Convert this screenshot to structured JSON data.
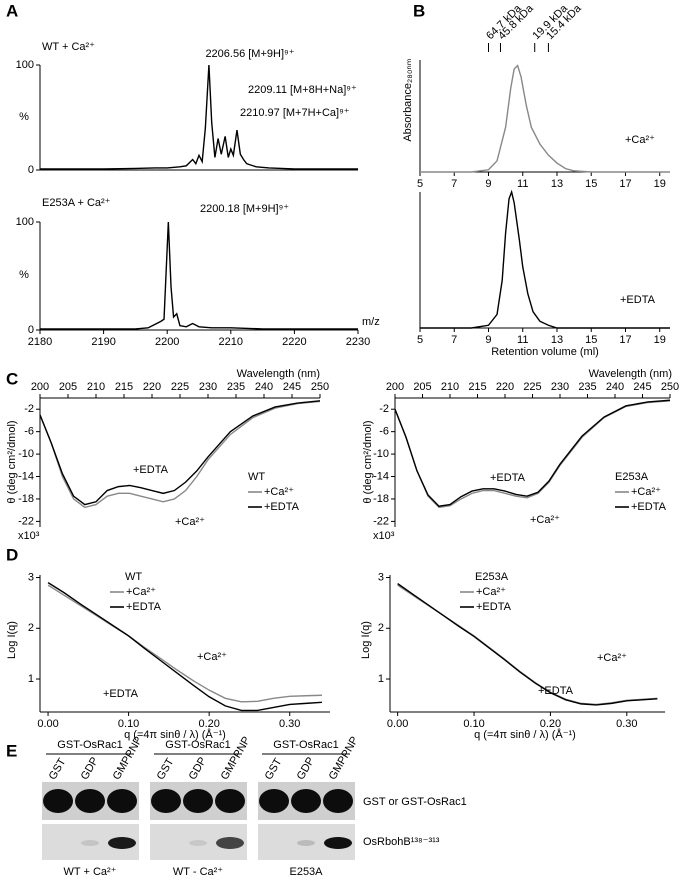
{
  "panel_labels": [
    "A",
    "B",
    "C",
    "D",
    "E"
  ],
  "chart_data": [
    {
      "type": "line",
      "title": "WT + Ca²⁺",
      "ylabel": "%",
      "annotations": [
        "2206.56 [M+9H]⁹⁺",
        "2209.11 [M+8H+Na]⁹⁺",
        "2210.97 [M+7H+Ca]⁹⁺"
      ],
      "xlim": [
        2180,
        2230
      ],
      "ylim": [
        0,
        100
      ],
      "yticks": [
        0,
        100
      ],
      "series": [
        {
          "color": "#000000",
          "x": [
            2180,
            2185,
            2190,
            2195,
            2198,
            2200,
            2202,
            2203,
            2204,
            2204.5,
            2205,
            2205.5,
            2206,
            2206.56,
            2207,
            2207.5,
            2208,
            2208.5,
            2209.11,
            2209.6,
            2210,
            2210.4,
            2210.97,
            2211.5,
            2212,
            2212.5,
            2213,
            2214,
            2216,
            2220,
            2225,
            2230
          ],
          "values": [
            1,
            1,
            1,
            1.5,
            2,
            2,
            3,
            4,
            10,
            6,
            14,
            8,
            40,
            100,
            45,
            12,
            30,
            15,
            32,
            12,
            20,
            14,
            38,
            15,
            10,
            6,
            5,
            3,
            2,
            1,
            1,
            1
          ]
        }
      ]
    },
    {
      "type": "line",
      "title": "E253A + Ca²⁺",
      "ylabel": "%",
      "xlabel": "m/z",
      "annotations": [
        "2200.18 [M+9H]⁹⁺"
      ],
      "xlim": [
        2180,
        2230
      ],
      "xticks": [
        2180,
        2190,
        2200,
        2210,
        2220,
        2230
      ],
      "ylim": [
        0,
        100
      ],
      "yticks": [
        0,
        100
      ],
      "series": [
        {
          "color": "#000000",
          "x": [
            2180,
            2185,
            2190,
            2195,
            2197,
            2198,
            2199,
            2199.5,
            2200.18,
            2200.6,
            2201,
            2201.5,
            2202,
            2203,
            2204,
            2205,
            2207,
            2210,
            2215,
            2220,
            2230
          ],
          "values": [
            1,
            1,
            1,
            1,
            2,
            5,
            8,
            10,
            100,
            40,
            12,
            15,
            4,
            3,
            6,
            3,
            2,
            2,
            1,
            1,
            1
          ]
        }
      ]
    },
    {
      "type": "line",
      "ylabel": "Absorbance₂₈₀ₙₘ",
      "annotations": [
        "+Ca²⁺"
      ],
      "markers": [
        {
          "label": "64.7 kDa",
          "x": 9.0
        },
        {
          "label": "45.8 kDa",
          "x": 9.7
        },
        {
          "label": "19.9 kDa",
          "x": 11.7
        },
        {
          "label": "15.4 kDa",
          "x": 12.5
        }
      ],
      "xlim": [
        5,
        19.6
      ],
      "xticks": [
        5,
        7,
        9,
        11,
        13,
        15,
        17,
        19
      ],
      "ylim": [
        0,
        1
      ],
      "series": [
        {
          "color": "#888888",
          "x": [
            5,
            8,
            9,
            9.5,
            10,
            10.3,
            10.5,
            10.7,
            10.9,
            11.2,
            11.5,
            12,
            12.5,
            13,
            13.5,
            14,
            15,
            19.6
          ],
          "values": [
            0,
            0,
            0.02,
            0.1,
            0.4,
            0.75,
            0.92,
            0.95,
            0.85,
            0.6,
            0.4,
            0.25,
            0.15,
            0.08,
            0.03,
            0.01,
            0,
            0
          ]
        }
      ]
    },
    {
      "type": "line",
      "xlabel": "Retention volume (ml)",
      "annotations": [
        "+EDTA"
      ],
      "xlim": [
        5,
        19.6
      ],
      "xticks": [
        5,
        7,
        9,
        11,
        13,
        15,
        17,
        19
      ],
      "ylim": [
        0,
        1
      ],
      "series": [
        {
          "color": "#000000",
          "x": [
            5,
            8,
            9,
            9.5,
            9.8,
            10,
            10.2,
            10.35,
            10.5,
            10.8,
            11,
            11.3,
            11.6,
            12,
            12.5,
            13,
            19.6
          ],
          "values": [
            0,
            0,
            0.02,
            0.1,
            0.35,
            0.7,
            0.95,
            1,
            0.92,
            0.65,
            0.45,
            0.25,
            0.12,
            0.05,
            0.02,
            0,
            0
          ]
        }
      ]
    },
    {
      "type": "line",
      "xlabel": "Wavelength (nm)",
      "ylabel": "θ (deg cm²/dmol)",
      "y_multiplier": "x10³",
      "legend_title": "WT",
      "annotations": [
        "+EDTA",
        "+Ca²⁺"
      ],
      "xlim": [
        200,
        250
      ],
      "xticks": [
        200,
        205,
        210,
        215,
        220,
        225,
        230,
        235,
        240,
        245,
        250
      ],
      "ylim": [
        -23,
        0
      ],
      "yticks": [
        -2,
        -6,
        -10,
        -14,
        -18,
        -22
      ],
      "series": [
        {
          "name": "+Ca²⁺",
          "color": "#888888",
          "x": [
            200,
            202,
            204,
            206,
            208,
            210,
            212,
            214,
            216,
            218,
            220,
            222,
            224,
            226,
            228,
            230,
            234,
            238,
            242,
            246,
            250
          ],
          "values": [
            -3,
            -8,
            -14,
            -18,
            -19.5,
            -19,
            -17.5,
            -17,
            -17,
            -17.5,
            -18,
            -18.5,
            -18,
            -16.5,
            -14,
            -11,
            -6.5,
            -3.5,
            -1.8,
            -1,
            -0.6
          ]
        },
        {
          "name": "+EDTA",
          "color": "#000000",
          "x": [
            200,
            202,
            204,
            206,
            208,
            210,
            212,
            214,
            216,
            218,
            220,
            222,
            224,
            226,
            228,
            230,
            234,
            238,
            242,
            246,
            250
          ],
          "values": [
            -3,
            -8,
            -13.5,
            -17.5,
            -19,
            -18.5,
            -16.5,
            -15.8,
            -15.6,
            -16,
            -16.5,
            -17,
            -16.5,
            -15,
            -13,
            -10.5,
            -6,
            -3.2,
            -1.6,
            -0.9,
            -0.5
          ]
        }
      ]
    },
    {
      "type": "line",
      "xlabel": "Wavelength (nm)",
      "ylabel": "θ (deg cm²/dmol)",
      "y_multiplier": "x10³",
      "legend_title": "E253A",
      "annotations": [
        "+EDTA",
        "+Ca²⁺"
      ],
      "xlim": [
        200,
        250
      ],
      "xticks": [
        200,
        205,
        210,
        215,
        220,
        225,
        230,
        235,
        240,
        245,
        250
      ],
      "ylim": [
        -23,
        0
      ],
      "yticks": [
        -2,
        -6,
        -10,
        -14,
        -18,
        -22
      ],
      "series": [
        {
          "name": "+Ca²⁺",
          "color": "#888888",
          "x": [
            200,
            202,
            204,
            206,
            208,
            210,
            212,
            214,
            216,
            218,
            220,
            222,
            224,
            226,
            228,
            230,
            234,
            238,
            242,
            246,
            250
          ],
          "values": [
            -2,
            -7,
            -13,
            -17.5,
            -19.5,
            -19.2,
            -18,
            -17,
            -16.5,
            -16.5,
            -17,
            -17.5,
            -17.8,
            -17,
            -15,
            -12,
            -7,
            -3.5,
            -1.5,
            -0.8,
            -0.5
          ]
        },
        {
          "name": "+EDTA",
          "color": "#000000",
          "x": [
            200,
            202,
            204,
            206,
            208,
            210,
            212,
            214,
            216,
            218,
            220,
            222,
            224,
            226,
            228,
            230,
            234,
            238,
            242,
            246,
            250
          ],
          "values": [
            -2,
            -7,
            -13,
            -17.3,
            -19.3,
            -19,
            -17.6,
            -16.6,
            -16.2,
            -16.2,
            -16.6,
            -17.2,
            -17.5,
            -16.8,
            -14.8,
            -11.8,
            -6.8,
            -3.4,
            -1.4,
            -0.7,
            -0.4
          ]
        }
      ]
    },
    {
      "type": "line",
      "xlabel": "q (=4π sinθ / λ)  (Å⁻¹)",
      "ylabel": "Log I(q)",
      "legend_title": "WT",
      "annotations": [
        "+Ca²⁺",
        "+EDTA"
      ],
      "xlim": [
        -0.01,
        0.35
      ],
      "xticks": [
        {
          "value": 0,
          "label": "0.00"
        },
        {
          "value": 0.1,
          "label": "0.10"
        },
        {
          "value": 0.2,
          "label": "0.20"
        },
        {
          "value": 0.3,
          "label": "0.30"
        }
      ],
      "ylim": [
        0.35,
        3.05
      ],
      "yticks": [
        1,
        2,
        3
      ],
      "series": [
        {
          "name": "+Ca²⁺",
          "color": "#888888",
          "x": [
            0,
            0.02,
            0.04,
            0.06,
            0.08,
            0.1,
            0.12,
            0.14,
            0.16,
            0.18,
            0.2,
            0.22,
            0.24,
            0.26,
            0.28,
            0.3,
            0.32,
            0.34
          ],
          "values": [
            2.85,
            2.65,
            2.45,
            2.25,
            2.05,
            1.85,
            1.62,
            1.4,
            1.18,
            0.97,
            0.78,
            0.62,
            0.55,
            0.56,
            0.62,
            0.66,
            0.67,
            0.68
          ]
        },
        {
          "name": "+EDTA",
          "color": "#000000",
          "x": [
            0,
            0.02,
            0.04,
            0.06,
            0.08,
            0.1,
            0.12,
            0.14,
            0.16,
            0.18,
            0.2,
            0.22,
            0.24,
            0.26,
            0.28,
            0.3,
            0.32,
            0.34
          ],
          "values": [
            2.9,
            2.7,
            2.48,
            2.27,
            2.06,
            1.85,
            1.6,
            1.36,
            1.12,
            0.88,
            0.65,
            0.47,
            0.38,
            0.38,
            0.44,
            0.5,
            0.52,
            0.54
          ]
        }
      ]
    },
    {
      "type": "line",
      "xlabel": "q (=4π sinθ / λ)  (Å⁻¹)",
      "ylabel": "Log I(q)",
      "legend_title": "E253A",
      "annotations": [
        "+Ca²⁺",
        "+EDTA"
      ],
      "xlim": [
        -0.01,
        0.35
      ],
      "xticks": [
        {
          "value": 0,
          "label": "0.00"
        },
        {
          "value": 0.1,
          "label": "0.10"
        },
        {
          "value": 0.2,
          "label": "0.20"
        },
        {
          "value": 0.3,
          "label": "0.30"
        }
      ],
      "ylim": [
        0.35,
        3.05
      ],
      "yticks": [
        1,
        2,
        3
      ],
      "series": [
        {
          "name": "+Ca²⁺",
          "color": "#888888",
          "x": [
            0,
            0.02,
            0.04,
            0.06,
            0.08,
            0.1,
            0.12,
            0.14,
            0.16,
            0.18,
            0.2,
            0.22,
            0.24,
            0.26,
            0.28,
            0.3,
            0.32,
            0.34
          ],
          "values": [
            2.85,
            2.65,
            2.45,
            2.25,
            2.05,
            1.85,
            1.62,
            1.39,
            1.15,
            0.93,
            0.74,
            0.6,
            0.52,
            0.5,
            0.53,
            0.58,
            0.6,
            0.62
          ]
        },
        {
          "name": "+EDTA",
          "color": "#000000",
          "x": [
            0,
            0.02,
            0.04,
            0.06,
            0.08,
            0.1,
            0.12,
            0.14,
            0.16,
            0.18,
            0.2,
            0.22,
            0.24,
            0.26,
            0.28,
            0.3,
            0.32,
            0.34
          ],
          "values": [
            2.88,
            2.67,
            2.46,
            2.25,
            2.04,
            1.84,
            1.61,
            1.38,
            1.14,
            0.92,
            0.73,
            0.59,
            0.51,
            0.49,
            0.52,
            0.57,
            0.59,
            0.61
          ]
        }
      ]
    }
  ],
  "gel": {
    "blots": [
      {
        "group": "GST-OsRac1",
        "lanes": [
          "GST",
          "GDP",
          "GMPPNP"
        ],
        "condition": "WT + Ca²⁺"
      },
      {
        "group": "GST-OsRac1",
        "lanes": [
          "GST",
          "GDP",
          "GMPPNP"
        ],
        "condition": "WT - Ca²⁺"
      },
      {
        "group": "GST-OsRac1",
        "lanes": [
          "GST",
          "GDP",
          "GMPPNP"
        ],
        "condition": "E253A"
      }
    ],
    "row_labels": [
      "GST or GST-OsRac1",
      "OsRbohB¹³⁸⁻³¹³"
    ]
  }
}
